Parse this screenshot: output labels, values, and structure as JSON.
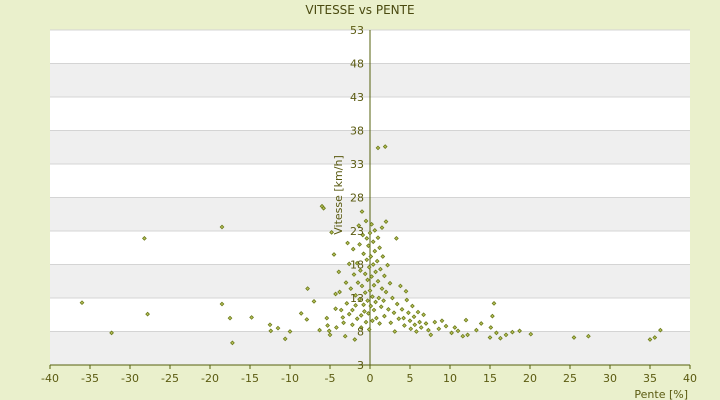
{
  "chart_data": {
    "type": "scatter",
    "title": "VITESSE vs PENTE",
    "xlabel": "Pente [%]",
    "ylabel": "Vitesse [km/h]",
    "xlim": [
      -40,
      40
    ],
    "ylim": [
      3,
      53
    ],
    "xticks": [
      -40,
      -35,
      -30,
      -25,
      -20,
      -15,
      -10,
      -5,
      0,
      5,
      10,
      15,
      20,
      25,
      30,
      35,
      40
    ],
    "yticks": [
      3,
      8,
      13,
      18,
      23,
      28,
      33,
      38,
      43,
      48,
      53
    ],
    "grid": true,
    "colors": {
      "background": "#eaf0cc",
      "plot_band_a": "#ffffff",
      "plot_band_b": "#efefef",
      "marker": "#6b7a1a",
      "axis": "#55600c"
    },
    "series": [
      {
        "values": [
          [
            -36.0,
            12.3
          ],
          [
            -32.3,
            7.8
          ],
          [
            -28.2,
            21.9
          ],
          [
            -27.8,
            10.6
          ],
          [
            -18.5,
            23.6
          ],
          [
            -18.5,
            12.1
          ],
          [
            -17.5,
            10.0
          ],
          [
            -17.2,
            6.3
          ],
          [
            -14.8,
            10.1
          ],
          [
            -12.5,
            9.0
          ],
          [
            -12.4,
            8.1
          ],
          [
            -11.5,
            8.5
          ],
          [
            -10.6,
            6.9
          ],
          [
            -10.0,
            8.0
          ],
          [
            -8.6,
            10.7
          ],
          [
            -7.9,
            9.8
          ],
          [
            -7.8,
            14.4
          ],
          [
            -7.0,
            12.5
          ],
          [
            -6.3,
            8.2
          ],
          [
            -6.0,
            26.7
          ],
          [
            -5.8,
            26.4
          ],
          [
            -5.4,
            10.0
          ],
          [
            -5.3,
            8.9
          ],
          [
            -5.1,
            8.1
          ],
          [
            -5.0,
            7.5
          ],
          [
            -4.8,
            22.8
          ],
          [
            -4.5,
            19.5
          ],
          [
            -4.3,
            13.6
          ],
          [
            -4.3,
            11.4
          ],
          [
            -4.2,
            8.6
          ],
          [
            -3.9,
            16.9
          ],
          [
            -3.8,
            13.9
          ],
          [
            -3.6,
            11.2
          ],
          [
            -3.4,
            10.1
          ],
          [
            -3.3,
            9.3
          ],
          [
            -3.1,
            7.3
          ],
          [
            -3.0,
            15.3
          ],
          [
            -2.9,
            12.2
          ],
          [
            -2.8,
            21.2
          ],
          [
            -2.6,
            18.1
          ],
          [
            -2.6,
            10.6
          ],
          [
            -2.4,
            14.4
          ],
          [
            -2.2,
            11.2
          ],
          [
            -2.2,
            9.0
          ],
          [
            -2.1,
            20.3
          ],
          [
            -2.0,
            16.5
          ],
          [
            -1.9,
            6.8
          ],
          [
            -1.8,
            13.4
          ],
          [
            -1.8,
            11.9
          ],
          [
            -1.6,
            18.2
          ],
          [
            -1.6,
            9.9
          ],
          [
            -1.5,
            15.3
          ],
          [
            -1.4,
            23.8
          ],
          [
            -1.3,
            21.0
          ],
          [
            -1.3,
            12.8
          ],
          [
            -1.2,
            17.1
          ],
          [
            -1.1,
            10.4
          ],
          [
            -1.1,
            8.6
          ],
          [
            -1.0,
            25.9
          ],
          [
            -1.0,
            14.8
          ],
          [
            -0.9,
            22.4
          ],
          [
            -0.8,
            19.6
          ],
          [
            -0.8,
            12.0
          ],
          [
            -0.7,
            11.0
          ],
          [
            -0.6,
            16.6
          ],
          [
            -0.6,
            13.8
          ],
          [
            -0.5,
            24.5
          ],
          [
            -0.5,
            9.4
          ],
          [
            -0.4,
            21.9
          ],
          [
            -0.4,
            18.7
          ],
          [
            -0.3,
            15.7
          ],
          [
            -0.3,
            12.6
          ],
          [
            -0.2,
            20.8
          ],
          [
            -0.2,
            10.7
          ],
          [
            -0.1,
            17.6
          ],
          [
            -0.1,
            8.3
          ],
          [
            0.0,
            22.7
          ],
          [
            0.0,
            14.1
          ],
          [
            0.1,
            19.2
          ],
          [
            0.1,
            11.8
          ],
          [
            0.2,
            24.0
          ],
          [
            0.2,
            16.2
          ],
          [
            0.3,
            13.2
          ],
          [
            0.3,
            9.6
          ],
          [
            0.4,
            21.4
          ],
          [
            0.4,
            18.0
          ],
          [
            0.5,
            14.9
          ],
          [
            0.5,
            11.2
          ],
          [
            0.6,
            23.1
          ],
          [
            0.6,
            20.0
          ],
          [
            0.7,
            16.9
          ],
          [
            0.7,
            12.4
          ],
          [
            0.8,
            10.0
          ],
          [
            0.9,
            18.5
          ],
          [
            1.0,
            35.4
          ],
          [
            1.0,
            22.0
          ],
          [
            1.0,
            15.5
          ],
          [
            1.1,
            13.0
          ],
          [
            1.2,
            20.5
          ],
          [
            1.2,
            9.2
          ],
          [
            1.3,
            17.3
          ],
          [
            1.4,
            11.7
          ],
          [
            1.5,
            23.5
          ],
          [
            1.5,
            14.4
          ],
          [
            1.6,
            19.2
          ],
          [
            1.7,
            12.6
          ],
          [
            1.8,
            16.3
          ],
          [
            1.8,
            10.3
          ],
          [
            1.9,
            35.6
          ],
          [
            2.0,
            24.4
          ],
          [
            2.0,
            13.9
          ],
          [
            2.2,
            17.9
          ],
          [
            2.3,
            11.3
          ],
          [
            2.5,
            15.2
          ],
          [
            2.6,
            9.3
          ],
          [
            2.8,
            13.0
          ],
          [
            3.0,
            10.8
          ],
          [
            3.1,
            8.0
          ],
          [
            3.3,
            21.9
          ],
          [
            3.4,
            12.1
          ],
          [
            3.6,
            9.9
          ],
          [
            3.8,
            14.8
          ],
          [
            4.0,
            11.3
          ],
          [
            4.2,
            10.0
          ],
          [
            4.3,
            8.9
          ],
          [
            4.5,
            14.0
          ],
          [
            4.6,
            12.7
          ],
          [
            4.8,
            10.8
          ],
          [
            5.0,
            9.6
          ],
          [
            5.1,
            8.4
          ],
          [
            5.3,
            11.8
          ],
          [
            5.5,
            10.2
          ],
          [
            5.6,
            9.0
          ],
          [
            5.8,
            8.0
          ],
          [
            6.0,
            10.9
          ],
          [
            6.2,
            9.4
          ],
          [
            6.4,
            8.6
          ],
          [
            6.7,
            10.5
          ],
          [
            7.0,
            9.2
          ],
          [
            7.3,
            8.2
          ],
          [
            7.6,
            7.5
          ],
          [
            8.1,
            9.4
          ],
          [
            8.6,
            8.4
          ],
          [
            9.0,
            9.6
          ],
          [
            9.5,
            8.8
          ],
          [
            10.2,
            7.8
          ],
          [
            10.6,
            8.6
          ],
          [
            11.0,
            8.1
          ],
          [
            11.6,
            7.3
          ],
          [
            12.0,
            9.7
          ],
          [
            12.2,
            7.5
          ],
          [
            13.3,
            8.2
          ],
          [
            13.9,
            9.2
          ],
          [
            15.0,
            7.1
          ],
          [
            15.1,
            8.6
          ],
          [
            15.3,
            10.3
          ],
          [
            15.5,
            12.2
          ],
          [
            15.8,
            7.8
          ],
          [
            16.3,
            7.0
          ],
          [
            17.0,
            7.5
          ],
          [
            17.8,
            7.9
          ],
          [
            18.7,
            8.1
          ],
          [
            20.1,
            7.6
          ],
          [
            25.5,
            7.1
          ],
          [
            27.3,
            7.3
          ],
          [
            35.0,
            6.8
          ],
          [
            35.6,
            7.1
          ],
          [
            36.3,
            8.2
          ]
        ]
      }
    ]
  }
}
